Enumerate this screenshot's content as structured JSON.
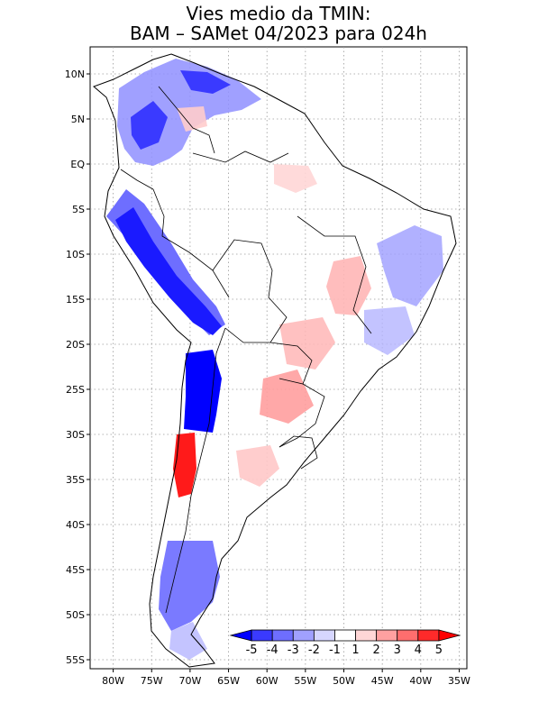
{
  "title": {
    "line1": "Vies medio da TMIN:",
    "line2": "BAM – SAMet 04/2023  para 024h"
  },
  "map": {
    "lat_ticks": [
      "10N",
      "5N",
      "EQ",
      "5S",
      "10S",
      "15S",
      "20S",
      "25S",
      "30S",
      "35S",
      "40S",
      "45S",
      "50S",
      "55S"
    ],
    "lon_ticks": [
      "80W",
      "75W",
      "70W",
      "65W",
      "60W",
      "55W",
      "50W",
      "45W",
      "40W",
      "35W"
    ],
    "lat_values": [
      10,
      5,
      0,
      -5,
      -10,
      -15,
      -20,
      -25,
      -30,
      -35,
      -40,
      -45,
      -50,
      -55
    ],
    "lon_values": [
      -80,
      -75,
      -70,
      -65,
      -60,
      -55,
      -50,
      -45,
      -40,
      -35
    ],
    "extent": {
      "lon": [
        -83,
        -34
      ],
      "lat": [
        -56,
        13
      ]
    },
    "grid": "dotted",
    "field": "TMIN bias (°C)"
  },
  "colorbar": {
    "levels": [
      "-5",
      "-4",
      "-3",
      "-2",
      "-1",
      "1",
      "2",
      "3",
      "4",
      "5"
    ],
    "colors": [
      "#0000ff",
      "#3a3aff",
      "#6e6eff",
      "#a0a0ff",
      "#d6d6ff",
      "#ffffff",
      "#ffd6d6",
      "#ffa0a0",
      "#ff6e6e",
      "#ff2a2a",
      "#ff0000"
    ],
    "placement": "inside-bottom-right"
  },
  "colors": {
    "strong_cold": "#0000ff",
    "cold": "#6e6eff",
    "weak_cold": "#d6d6ff",
    "weak_warm": "#ffd6d6",
    "warm": "#ffa0a0",
    "strong_warm": "#ff0000",
    "border": "#000000"
  }
}
